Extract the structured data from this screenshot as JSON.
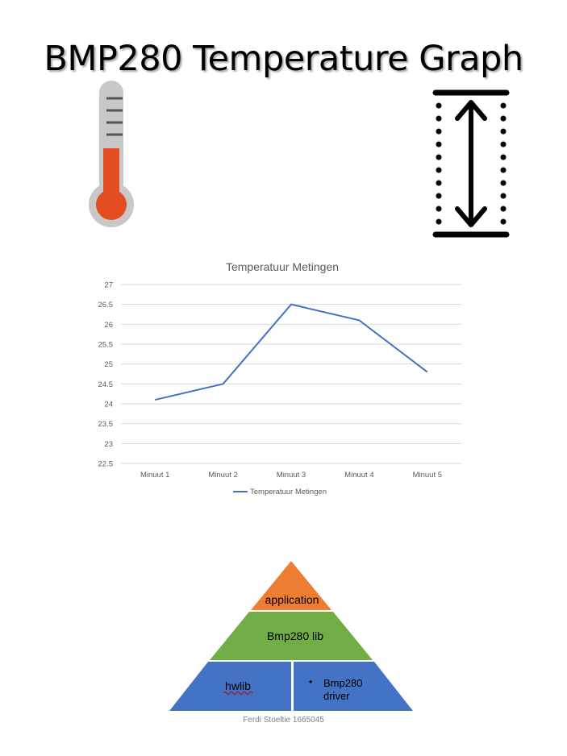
{
  "title": "BMP280 Temperature Graph",
  "icons": {
    "thermometer": "thermometer-icon",
    "vertical_measure": "vertical-measure-icon"
  },
  "chart_data": {
    "type": "line",
    "title": "Temperatuur Metingen",
    "categories": [
      "Minuut 1",
      "Minuut 2",
      "Minuut 3",
      "Minuut 4",
      "Minuut 5"
    ],
    "series": [
      {
        "name": "Temperatuur Metingen",
        "values": [
          24.1,
          24.5,
          26.5,
          26.1,
          24.8
        ],
        "color": "#4472c4"
      }
    ],
    "ylim": [
      22.5,
      27
    ],
    "yticks": [
      "22.5",
      "23",
      "23.5",
      "24",
      "24.5",
      "25",
      "25.5",
      "26",
      "26.5",
      "27"
    ],
    "grid": true,
    "legend": "bottom"
  },
  "pyramid": {
    "top": {
      "label": "application",
      "color": "#ed7d31"
    },
    "middle": {
      "label": "Bmp280 lib",
      "color": "#70ad47"
    },
    "bottom_left": {
      "label": "hwlib",
      "color": "#4472c4"
    },
    "bottom_right": {
      "bullet": "•",
      "label_line1": "Bmp280",
      "label_line2": "driver",
      "color": "#4472c4"
    }
  },
  "footer": "Ferdi Stoeltie 1665045"
}
